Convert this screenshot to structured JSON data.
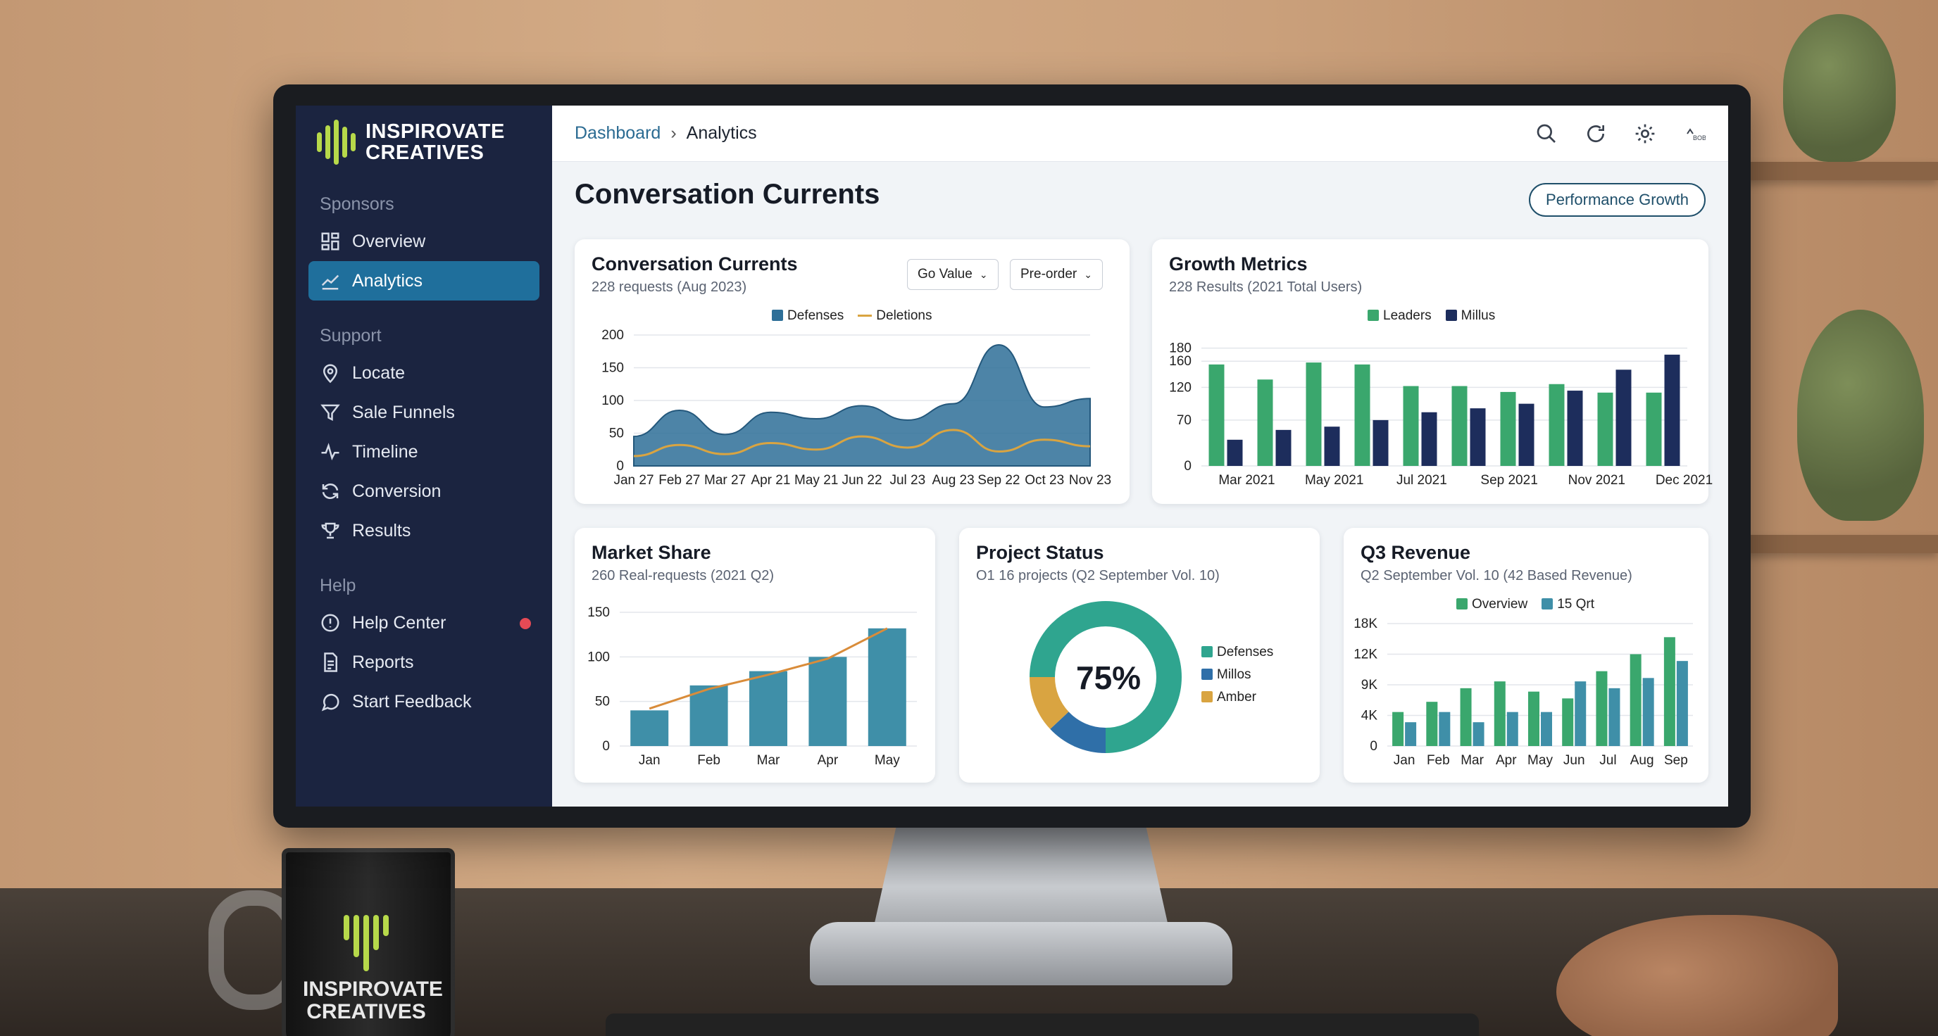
{
  "app": {
    "brand_line1": "INSPIROVATE",
    "brand_line2": "CREATIVES"
  },
  "sidebar": {
    "sections": [
      {
        "label": "Sponsors"
      },
      {
        "label": "Support"
      },
      {
        "label": "Help"
      }
    ],
    "items": [
      {
        "label": "Overview",
        "icon": "grid-icon"
      },
      {
        "label": "Analytics",
        "icon": "chart-line-icon",
        "active": true
      },
      {
        "label": "Locate",
        "icon": "map-pin-icon"
      },
      {
        "label": "Sale Funnels",
        "icon": "funnel-icon"
      },
      {
        "label": "Timeline",
        "icon": "pulse-icon"
      },
      {
        "label": "Conversion",
        "icon": "refresh-icon"
      },
      {
        "label": "Results",
        "icon": "trophy-icon"
      },
      {
        "label": "Help Center",
        "icon": "alert-circle-icon",
        "badge_color": "#e64a55"
      },
      {
        "label": "Reports",
        "icon": "document-icon"
      },
      {
        "label": "Start Feedback",
        "icon": "chat-icon"
      }
    ]
  },
  "topbar": {
    "breadcrumb_root": "Dashboard",
    "breadcrumb_sep": "›",
    "breadcrumb_current": "Analytics",
    "icons": [
      "search-icon",
      "refresh-icon",
      "gear-icon",
      "bob-icon"
    ],
    "bob_text": "BOB"
  },
  "page": {
    "title": "Conversation Currents",
    "action_button": "Performance Growth"
  },
  "colors": {
    "accent": "#1f6f9c",
    "green": "#3aa76d",
    "navy": "#1d2d5c",
    "teal": "#3f8fa8",
    "amber": "#d9a441",
    "donut_teal": "#2fa58f",
    "donut_blue": "#2f6fa8"
  },
  "cards": {
    "conversation": {
      "title": "Conversation Currents",
      "subtitle": "228 requests (Aug 2023)",
      "dropdown1": "Go Value",
      "dropdown2": "Pre-order"
    },
    "growth": {
      "title": "Growth Metrics",
      "subtitle": "228 Results (2021 Total Users)"
    },
    "market": {
      "title": "Market Share",
      "subtitle": "260 Real-requests (2021 Q2)"
    },
    "project": {
      "title": "Project Status",
      "subtitle": "O1 16 projects (Q2 September Vol. 10)"
    },
    "q3": {
      "title": "Q3 Revenue",
      "subtitle": "Q2 September Vol. 10 (42 Based Revenue)"
    }
  },
  "chart_data": [
    {
      "id": "conversation",
      "type": "area",
      "x": [
        "Jan 27",
        "Feb 27",
        "Mar 27",
        "Apr 21",
        "May 21",
        "Jun 22",
        "Jul 23",
        "Aug 23",
        "Sep 22",
        "Oct 23",
        "Nov 23"
      ],
      "yticks": [
        0,
        50,
        100,
        150,
        200
      ],
      "ylim": [
        0,
        200
      ],
      "series": [
        {
          "name": "Defenses",
          "kind": "area",
          "color": "#2e6f98",
          "values": [
            45,
            85,
            48,
            82,
            72,
            92,
            70,
            95,
            185,
            90,
            103
          ]
        },
        {
          "name": "Deletions",
          "kind": "line",
          "color": "#d9a441",
          "values": [
            15,
            32,
            18,
            35,
            25,
            45,
            28,
            55,
            22,
            40,
            30
          ]
        }
      ]
    },
    {
      "id": "growth",
      "type": "bar",
      "ticks": [
        "Mar 2021",
        "May 2021",
        "Jul 2021",
        "Sep 2021",
        "Nov 2021",
        "Dec 2021"
      ],
      "yticks": [
        0,
        70,
        120,
        160,
        180
      ],
      "ylim": [
        0,
        200
      ],
      "series": [
        {
          "name": "Leaders",
          "color": "#3aa76d",
          "values": [
            155,
            132,
            158,
            155,
            122,
            122,
            113,
            125,
            112,
            112
          ]
        },
        {
          "name": "Millus",
          "color": "#1d2d5c",
          "values": [
            40,
            55,
            60,
            70,
            82,
            88,
            95,
            115,
            147,
            170
          ]
        }
      ]
    },
    {
      "id": "market",
      "type": "bar",
      "categories": [
        "Jan",
        "Feb",
        "Mar",
        "Apr",
        "May"
      ],
      "yticks": [
        0,
        50,
        100,
        150
      ],
      "ylim": [
        0,
        150
      ],
      "values": [
        40,
        68,
        84,
        100,
        132
      ],
      "trend": [
        42,
        64,
        80,
        98,
        132
      ],
      "bar_color": "#3f8fa8",
      "trend_color": "#d98c3a"
    },
    {
      "id": "project",
      "type": "pie",
      "center_label": "75%",
      "slices": [
        {
          "name": "Defenses",
          "value": 75,
          "color": "#2fa58f"
        },
        {
          "name": "Millos",
          "value": 13,
          "color": "#2f6fa8"
        },
        {
          "name": "Amber",
          "value": 12,
          "color": "#d9a441"
        }
      ]
    },
    {
      "id": "q3",
      "type": "bar",
      "categories": [
        "Jan",
        "Feb",
        "Mar",
        "Apr",
        "May",
        "Jun",
        "Jul",
        "Aug",
        "Sep"
      ],
      "yticks": [
        "0",
        "4K",
        "9K",
        "12K",
        "18K"
      ],
      "ylim": [
        0,
        18
      ],
      "series": [
        {
          "name": "Overview",
          "color": "#3aa76d",
          "values": [
            5,
            6.5,
            8.5,
            9.5,
            8,
            7,
            11,
            13.5,
            16
          ]
        },
        {
          "name": "15 Qrt",
          "color": "#3f8fa8",
          "values": [
            3.5,
            5,
            3.5,
            5,
            5,
            9.5,
            8.5,
            10,
            12.5
          ]
        }
      ]
    }
  ]
}
